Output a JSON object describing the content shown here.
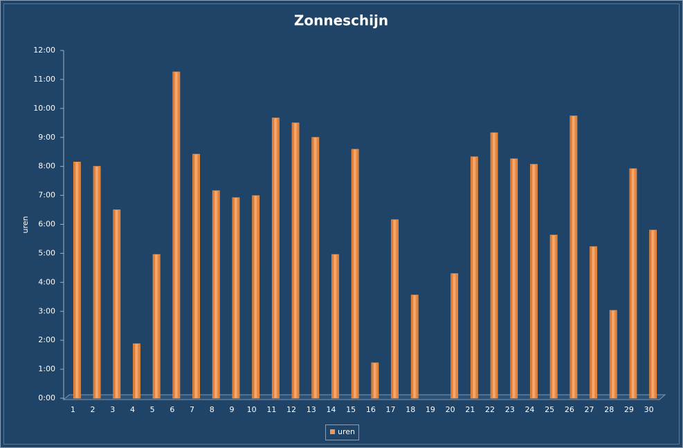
{
  "chart_data": {
    "type": "bar",
    "title": "Zonneschijn",
    "y_label": "uren",
    "categories": [
      "1",
      "2",
      "3",
      "4",
      "5",
      "6",
      "7",
      "8",
      "9",
      "10",
      "11",
      "12",
      "13",
      "14",
      "15",
      "16",
      "17",
      "18",
      "19",
      "20",
      "21",
      "22",
      "23",
      "24",
      "25",
      "26",
      "27",
      "28",
      "29",
      "30"
    ],
    "series": [
      {
        "name": "uren",
        "color": "#f79646",
        "values": [
          8.15,
          8.0,
          6.5,
          1.88,
          4.96,
          11.26,
          8.42,
          7.16,
          6.92,
          6.99,
          9.67,
          9.5,
          9.0,
          4.96,
          8.59,
          1.22,
          6.16,
          3.56,
          0,
          4.3,
          8.33,
          9.16,
          8.26,
          8.07,
          5.63,
          9.74,
          5.23,
          3.03,
          7.92,
          5.8
        ]
      }
    ],
    "ylim": [
      0,
      12
    ],
    "yticks": [
      {
        "value": 0,
        "label": "0:00"
      },
      {
        "value": 1,
        "label": "1:00"
      },
      {
        "value": 2,
        "label": "2:00"
      },
      {
        "value": 3,
        "label": "3:00"
      },
      {
        "value": 4,
        "label": "4:00"
      },
      {
        "value": 5,
        "label": "5:00"
      },
      {
        "value": 6,
        "label": "6:00"
      },
      {
        "value": 7,
        "label": "7:00"
      },
      {
        "value": 8,
        "label": "8:00"
      },
      {
        "value": 9,
        "label": "9:00"
      },
      {
        "value": 10,
        "label": "10:00"
      },
      {
        "value": 11,
        "label": "11:00"
      },
      {
        "value": 12,
        "label": "12:00"
      }
    ],
    "legend": "bottom"
  }
}
